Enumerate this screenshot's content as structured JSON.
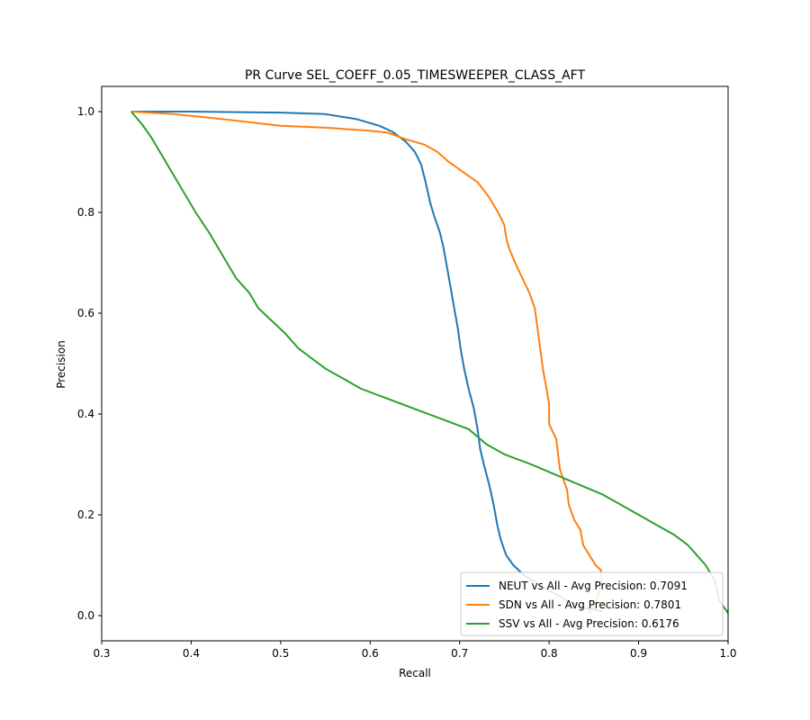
{
  "chart_data": {
    "type": "line",
    "title": "PR Curve SEL_COEFF_0.05_TIMESWEEPER_CLASS_AFT",
    "xlabel": "Recall",
    "ylabel": "Precision",
    "xlim": [
      0.3,
      1.0
    ],
    "ylim": [
      -0.05,
      1.05
    ],
    "xticks": [
      0.3,
      0.4,
      0.5,
      0.6,
      0.7,
      0.8,
      0.9,
      1.0
    ],
    "xtick_labels": [
      "0.3",
      "0.4",
      "0.5",
      "0.6",
      "0.7",
      "0.8",
      "0.9",
      "1.0"
    ],
    "yticks": [
      0.0,
      0.2,
      0.4,
      0.6,
      0.8,
      1.0
    ],
    "ytick_labels": [
      "0.0",
      "0.2",
      "0.4",
      "0.6",
      "0.8",
      "1.0"
    ],
    "grid": false,
    "legend_position": "bottom-right",
    "series": [
      {
        "name": "NEUT vs All - Avg Precision: 0.7091",
        "color": "#1f77b4",
        "points": [
          [
            0.333,
            1.0
          ],
          [
            0.4,
            1.0
          ],
          [
            0.5,
            0.998
          ],
          [
            0.55,
            0.995
          ],
          [
            0.585,
            0.985
          ],
          [
            0.61,
            0.972
          ],
          [
            0.625,
            0.96
          ],
          [
            0.64,
            0.94
          ],
          [
            0.65,
            0.92
          ],
          [
            0.657,
            0.895
          ],
          [
            0.662,
            0.86
          ],
          [
            0.667,
            0.82
          ],
          [
            0.672,
            0.79
          ],
          [
            0.678,
            0.76
          ],
          [
            0.682,
            0.73
          ],
          [
            0.686,
            0.69
          ],
          [
            0.69,
            0.65
          ],
          [
            0.694,
            0.61
          ],
          [
            0.698,
            0.57
          ],
          [
            0.701,
            0.53
          ],
          [
            0.705,
            0.49
          ],
          [
            0.71,
            0.45
          ],
          [
            0.716,
            0.41
          ],
          [
            0.72,
            0.37
          ],
          [
            0.723,
            0.33
          ],
          [
            0.727,
            0.3
          ],
          [
            0.733,
            0.26
          ],
          [
            0.738,
            0.22
          ],
          [
            0.742,
            0.18
          ],
          [
            0.746,
            0.15
          ],
          [
            0.752,
            0.12
          ],
          [
            0.76,
            0.1
          ],
          [
            0.772,
            0.08
          ],
          [
            0.79,
            0.06
          ],
          [
            0.8,
            0.05
          ],
          [
            0.82,
            0.03
          ],
          [
            0.84,
            0.015
          ],
          [
            0.86,
            0.008
          ]
        ]
      },
      {
        "name": "SDN vs All - Avg Precision: 0.7801",
        "color": "#ff7f0e",
        "points": [
          [
            0.333,
            1.0
          ],
          [
            0.38,
            0.995
          ],
          [
            0.42,
            0.988
          ],
          [
            0.46,
            0.98
          ],
          [
            0.5,
            0.972
          ],
          [
            0.55,
            0.968
          ],
          [
            0.6,
            0.962
          ],
          [
            0.62,
            0.958
          ],
          [
            0.64,
            0.945
          ],
          [
            0.66,
            0.935
          ],
          [
            0.675,
            0.92
          ],
          [
            0.688,
            0.9
          ],
          [
            0.7,
            0.885
          ],
          [
            0.72,
            0.86
          ],
          [
            0.733,
            0.83
          ],
          [
            0.743,
            0.8
          ],
          [
            0.75,
            0.775
          ],
          [
            0.752,
            0.75
          ],
          [
            0.755,
            0.73
          ],
          [
            0.762,
            0.7
          ],
          [
            0.77,
            0.67
          ],
          [
            0.778,
            0.64
          ],
          [
            0.784,
            0.61
          ],
          [
            0.787,
            0.57
          ],
          [
            0.79,
            0.53
          ],
          [
            0.793,
            0.49
          ],
          [
            0.797,
            0.45
          ],
          [
            0.8,
            0.42
          ],
          [
            0.8,
            0.38
          ],
          [
            0.808,
            0.35
          ],
          [
            0.81,
            0.32
          ],
          [
            0.812,
            0.29
          ],
          [
            0.816,
            0.27
          ],
          [
            0.82,
            0.25
          ],
          [
            0.822,
            0.22
          ],
          [
            0.828,
            0.19
          ],
          [
            0.835,
            0.17
          ],
          [
            0.838,
            0.14
          ],
          [
            0.845,
            0.12
          ],
          [
            0.852,
            0.1
          ],
          [
            0.858,
            0.09
          ],
          [
            0.858,
            0.06
          ],
          [
            0.855,
            0.04
          ],
          [
            0.85,
            0.02
          ],
          [
            0.845,
            0.005
          ]
        ]
      },
      {
        "name": "SSV vs All - Avg Precision: 0.6176",
        "color": "#2ca02c",
        "points": [
          [
            0.333,
            1.0
          ],
          [
            0.345,
            0.975
          ],
          [
            0.355,
            0.95
          ],
          [
            0.365,
            0.92
          ],
          [
            0.375,
            0.89
          ],
          [
            0.385,
            0.86
          ],
          [
            0.395,
            0.83
          ],
          [
            0.405,
            0.8
          ],
          [
            0.42,
            0.76
          ],
          [
            0.43,
            0.73
          ],
          [
            0.44,
            0.7
          ],
          [
            0.45,
            0.67
          ],
          [
            0.465,
            0.64
          ],
          [
            0.475,
            0.61
          ],
          [
            0.49,
            0.585
          ],
          [
            0.505,
            0.56
          ],
          [
            0.52,
            0.53
          ],
          [
            0.535,
            0.51
          ],
          [
            0.55,
            0.49
          ],
          [
            0.57,
            0.47
          ],
          [
            0.59,
            0.45
          ],
          [
            0.62,
            0.43
          ],
          [
            0.65,
            0.41
          ],
          [
            0.68,
            0.39
          ],
          [
            0.71,
            0.37
          ],
          [
            0.73,
            0.34
          ],
          [
            0.75,
            0.32
          ],
          [
            0.78,
            0.3
          ],
          [
            0.8,
            0.285
          ],
          [
            0.82,
            0.27
          ],
          [
            0.84,
            0.255
          ],
          [
            0.86,
            0.24
          ],
          [
            0.88,
            0.22
          ],
          [
            0.9,
            0.2
          ],
          [
            0.92,
            0.18
          ],
          [
            0.94,
            0.16
          ],
          [
            0.955,
            0.14
          ],
          [
            0.965,
            0.12
          ],
          [
            0.975,
            0.1
          ],
          [
            0.985,
            0.07
          ],
          [
            0.99,
            0.03
          ],
          [
            1.0,
            0.005
          ]
        ]
      }
    ]
  }
}
